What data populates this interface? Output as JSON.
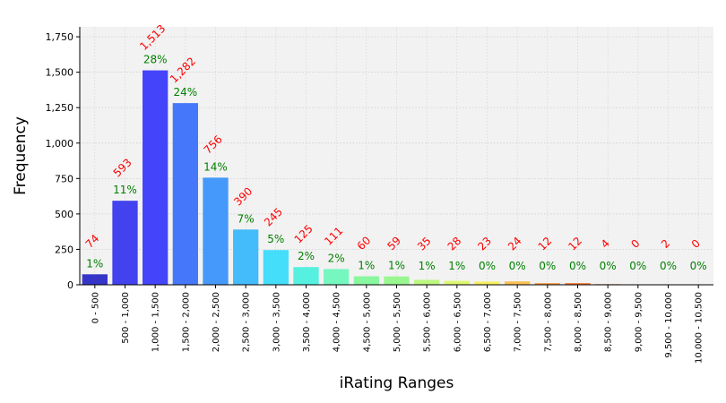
{
  "chart_data": {
    "type": "bar",
    "xlabel": "iRating Ranges",
    "ylabel": "Frequency",
    "ylim": [
      0,
      1820
    ],
    "yticks": [
      0,
      250,
      500,
      750,
      1000,
      1250,
      1500,
      1750
    ],
    "ytick_labels": [
      "0",
      "250",
      "500",
      "750",
      "1,000",
      "1,250",
      "1,500",
      "1,750"
    ],
    "grid": true,
    "categories": [
      "0 - 500",
      "500 - 1,000",
      "1,000 - 1,500",
      "1,500 - 2,000",
      "2,000 - 2,500",
      "2,500 - 3,000",
      "3,000 - 3,500",
      "3,500 - 4,000",
      "4,000 - 4,500",
      "4,500 - 5,000",
      "5,000 - 5,500",
      "5,500 - 6,000",
      "6,000 - 6,500",
      "6,500 - 7,000",
      "7,000 - 7,500",
      "7,500 - 8,000",
      "8,000 - 8,500",
      "8,500 - 9,000",
      "9,000 - 9,500",
      "9,500 - 10,000",
      "10,000 - 10,500"
    ],
    "values": [
      74,
      593,
      1513,
      1282,
      756,
      390,
      245,
      125,
      111,
      60,
      59,
      35,
      28,
      23,
      24,
      12,
      12,
      4,
      0,
      2,
      0
    ],
    "value_labels": [
      "74",
      "593",
      "1,513",
      "1,282",
      "756",
      "390",
      "245",
      "125",
      "111",
      "60",
      "59",
      "35",
      "28",
      "23",
      "24",
      "12",
      "12",
      "4",
      "0",
      "2",
      "0"
    ],
    "percent_labels": [
      "1%",
      "11%",
      "28%",
      "24%",
      "14%",
      "7%",
      "5%",
      "2%",
      "2%",
      "1%",
      "1%",
      "1%",
      "1%",
      "0%",
      "0%",
      "0%",
      "0%",
      "0%",
      "0%",
      "0%",
      "0%"
    ],
    "colors": [
      "#3535c8",
      "#4242ee",
      "#4444fa",
      "#4477fa",
      "#4499fa",
      "#44bbfa",
      "#44ddfa",
      "#55f0e0",
      "#77f7c0",
      "#88f7a0",
      "#99f790",
      "#bbf780",
      "#ddf770",
      "#f7f060",
      "#fac050",
      "#f79a40",
      "#f77730",
      "#dd4422",
      "#bb2211",
      "#991111",
      "#771111"
    ],
    "background": "#f2f2f2",
    "count_label_color": "#ff0000",
    "percent_label_color": "#008000"
  }
}
